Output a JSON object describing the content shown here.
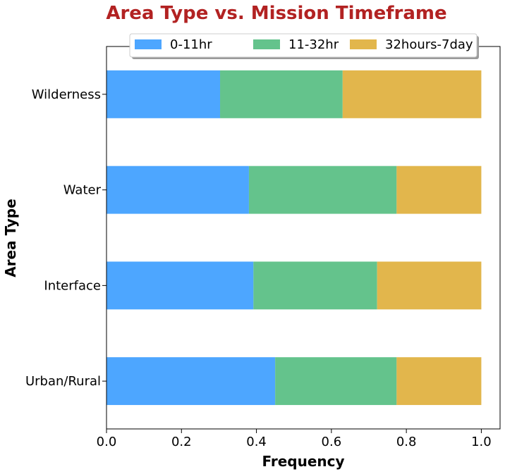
{
  "chart_data": {
    "type": "bar",
    "orientation": "horizontal",
    "stacked": true,
    "title": "Area Type vs. Mission Timeframe",
    "title_color": "#b22222",
    "xlabel": "Frequency",
    "ylabel": "Area Type",
    "xlim": [
      0.0,
      1.05
    ],
    "x_ticks": [
      "0.0",
      "0.2",
      "0.4",
      "0.6",
      "0.8",
      "1.0"
    ],
    "x_tick_values": [
      0.0,
      0.2,
      0.4,
      0.6,
      0.8,
      1.0
    ],
    "categories": [
      "Wilderness",
      "Water",
      "Interface",
      "Urban/Rural"
    ],
    "series": [
      {
        "name": "0-11hr",
        "color": "#4da6ff",
        "values": [
          0.303,
          0.38,
          0.392,
          0.45
        ]
      },
      {
        "name": "11-32hr",
        "color": "#64c38c",
        "values": [
          0.327,
          0.394,
          0.33,
          0.324
        ]
      },
      {
        "name": "32hours-7day",
        "color": "#e2b64c",
        "values": [
          0.37,
          0.226,
          0.278,
          0.226
        ]
      }
    ],
    "grid": false,
    "legend_position": "top-center",
    "legend_columns": 3
  }
}
